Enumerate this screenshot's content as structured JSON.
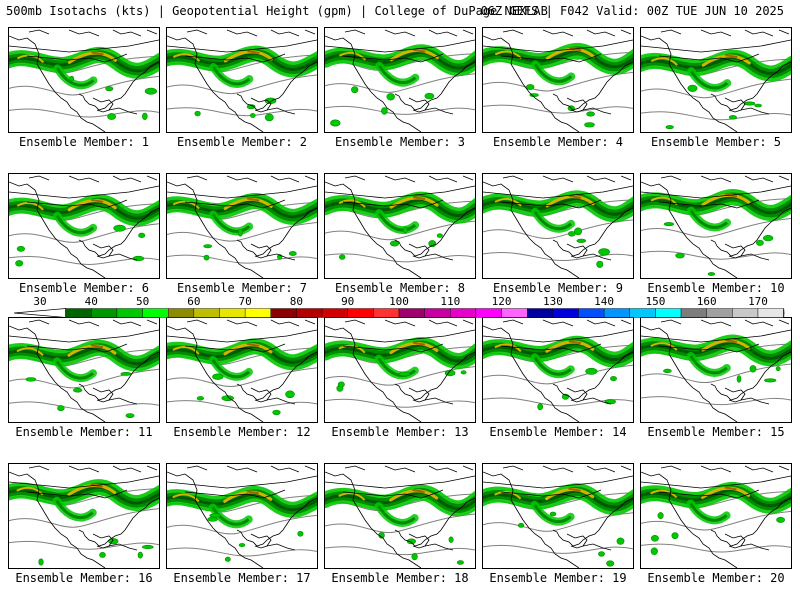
{
  "header": {
    "left": "500mb Isotachs (kts) | Geopotential Height (gpm) | College of DuPage NEXLAB",
    "right": "06Z GEFS | F042 Valid: 00Z TUE JUN 10 2025"
  },
  "members": [
    "Ensemble Member: 1",
    "Ensemble Member: 2",
    "Ensemble Member: 3",
    "Ensemble Member: 4",
    "Ensemble Member: 5",
    "Ensemble Member: 6",
    "Ensemble Member: 7",
    "Ensemble Member: 8",
    "Ensemble Member: 9",
    "Ensemble Member: 10",
    "Ensemble Member: 11",
    "Ensemble Member: 12",
    "Ensemble Member: 13",
    "Ensemble Member: 14",
    "Ensemble Member: 15",
    "Ensemble Member: 16",
    "Ensemble Member: 17",
    "Ensemble Member: 18",
    "Ensemble Member: 19",
    "Ensemble Member: 20"
  ],
  "colorbar": {
    "tick_labels": [
      "30",
      "40",
      "50",
      "60",
      "70",
      "80",
      "90",
      "100",
      "110",
      "120",
      "130",
      "140",
      "150",
      "160",
      "170"
    ],
    "tick_values": [
      30,
      40,
      50,
      60,
      70,
      80,
      90,
      100,
      110,
      120,
      130,
      140,
      150,
      160,
      170
    ],
    "min": 30,
    "max": 170,
    "step": 5,
    "colors": [
      "#006400",
      "#009600",
      "#00c800",
      "#00ff00",
      "#8c8c00",
      "#bebe00",
      "#e6e600",
      "#ffff00",
      "#8b0000",
      "#b40000",
      "#d20000",
      "#ff0000",
      "#ff3232",
      "#a0006e",
      "#c800a0",
      "#e600c8",
      "#ff00ff",
      "#ff64ff",
      "#0000a0",
      "#0000dc",
      "#0050ff",
      "#0096ff",
      "#00c8ff",
      "#00ffff",
      "#7d7d7d",
      "#a0a0a0",
      "#c8c8c8",
      "#e6e6e6"
    ]
  },
  "colors": {
    "jet_light": "#00c800",
    "jet_mid": "#008c00",
    "jet_dark": "#005a00",
    "jet_core": "#d2b400",
    "jet_max": "#a06400",
    "height_contour": "#808080",
    "coastline": "#000000"
  }
}
